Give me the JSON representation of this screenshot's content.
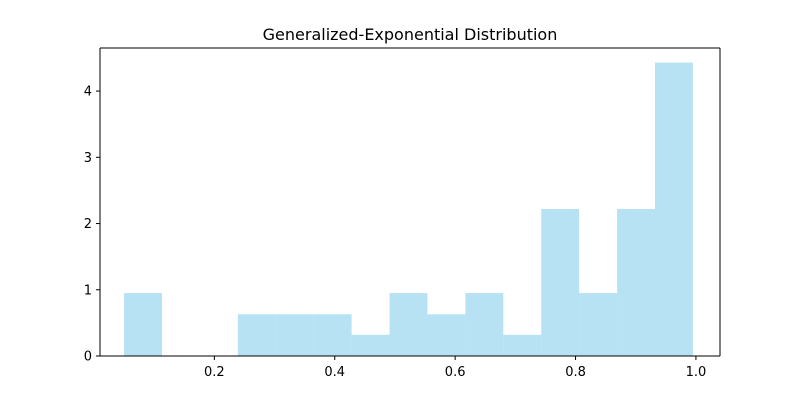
{
  "chart_data": {
    "type": "bar",
    "title": "Generalized-Exponential Distribution",
    "xlabel": "",
    "ylabel": "",
    "xlim": [
      0.01,
      1.04
    ],
    "ylim": [
      0,
      4.65
    ],
    "grid": false,
    "bar_color": "#87CEEB",
    "bar_opacity": 0.6,
    "bin_edges": [
      0.05,
      0.113,
      0.176,
      0.239,
      0.302,
      0.365,
      0.428,
      0.491,
      0.554,
      0.617,
      0.68,
      0.743,
      0.806,
      0.869,
      0.932,
      0.995
    ],
    "values": [
      0.95,
      0,
      0,
      0.63,
      0.63,
      0.63,
      0.32,
      0.95,
      0.63,
      0.95,
      0.32,
      2.22,
      0.95,
      2.22,
      4.43
    ],
    "x_ticks": [
      {
        "value": 0.2,
        "label": "0.2"
      },
      {
        "value": 0.4,
        "label": "0.4"
      },
      {
        "value": 0.6,
        "label": "0.6"
      },
      {
        "value": 0.8,
        "label": "0.8"
      },
      {
        "value": 1.0,
        "label": "1.0"
      }
    ],
    "y_ticks": [
      {
        "value": 0,
        "label": "0"
      },
      {
        "value": 1,
        "label": "1"
      },
      {
        "value": 2,
        "label": "2"
      },
      {
        "value": 3,
        "label": "3"
      },
      {
        "value": 4,
        "label": "4"
      }
    ]
  }
}
